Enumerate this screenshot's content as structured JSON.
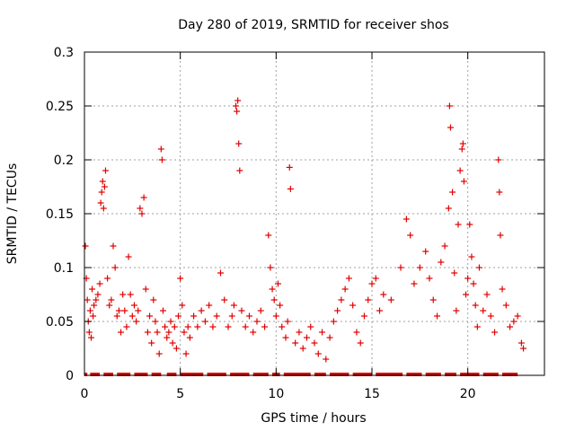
{
  "chart_data": {
    "type": "scatter",
    "title": "Day 280 of 2019, SRMTID for receiver shos",
    "xlabel": "GPS time / hours",
    "ylabel": "SRMTID / TECUs",
    "xlim": [
      0,
      24
    ],
    "ylim": [
      0,
      0.3
    ],
    "x_ticks": [
      0,
      5,
      10,
      15,
      20
    ],
    "x_tick_labels": [
      "0",
      "5",
      "10",
      "15",
      "20"
    ],
    "y_ticks": [
      0,
      0.05,
      0.1,
      0.15,
      0.2,
      0.25,
      0.3
    ],
    "y_tick_labels": [
      "0",
      "0.05",
      "0.1",
      "0.15",
      "0.2",
      "0.25",
      "0.3"
    ],
    "grid": true,
    "marker": "plus",
    "color": "#e00000",
    "series": [
      {
        "name": "SRMTID",
        "points": [
          [
            0.05,
            0.12
          ],
          [
            0.1,
            0.09
          ],
          [
            0.15,
            0.07
          ],
          [
            0.2,
            0.05
          ],
          [
            0.25,
            0.04
          ],
          [
            0.3,
            0.06
          ],
          [
            0.35,
            0.035
          ],
          [
            0.4,
            0.08
          ],
          [
            0.45,
            0.055
          ],
          [
            0.5,
            0.065
          ],
          [
            0.6,
            0.07
          ],
          [
            0.7,
            0.075
          ],
          [
            0.8,
            0.085
          ],
          [
            0.85,
            0.16
          ],
          [
            0.9,
            0.17
          ],
          [
            0.95,
            0.18
          ],
          [
            1.0,
            0.155
          ],
          [
            1.05,
            0.175
          ],
          [
            1.1,
            0.19
          ],
          [
            1.2,
            0.09
          ],
          [
            1.3,
            0.065
          ],
          [
            1.4,
            0.07
          ],
          [
            1.5,
            0.12
          ],
          [
            1.6,
            0.1
          ],
          [
            1.7,
            0.055
          ],
          [
            1.8,
            0.06
          ],
          [
            1.9,
            0.04
          ],
          [
            2.0,
            0.075
          ],
          [
            2.1,
            0.06
          ],
          [
            2.2,
            0.045
          ],
          [
            2.3,
            0.11
          ],
          [
            2.4,
            0.075
          ],
          [
            2.5,
            0.055
          ],
          [
            2.6,
            0.065
          ],
          [
            2.7,
            0.05
          ],
          [
            2.8,
            0.06
          ],
          [
            2.9,
            0.155
          ],
          [
            3.0,
            0.15
          ],
          [
            3.1,
            0.165
          ],
          [
            3.2,
            0.08
          ],
          [
            3.3,
            0.04
          ],
          [
            3.4,
            0.055
          ],
          [
            3.5,
            0.03
          ],
          [
            3.6,
            0.07
          ],
          [
            3.7,
            0.05
          ],
          [
            3.8,
            0.04
          ],
          [
            3.9,
            0.02
          ],
          [
            4.0,
            0.21
          ],
          [
            4.05,
            0.2
          ],
          [
            4.1,
            0.06
          ],
          [
            4.2,
            0.045
          ],
          [
            4.3,
            0.035
          ],
          [
            4.4,
            0.04
          ],
          [
            4.5,
            0.05
          ],
          [
            4.6,
            0.03
          ],
          [
            4.7,
            0.045
          ],
          [
            4.8,
            0.025
          ],
          [
            4.9,
            0.055
          ],
          [
            5.0,
            0.09
          ],
          [
            5.1,
            0.065
          ],
          [
            5.2,
            0.04
          ],
          [
            5.3,
            0.02
          ],
          [
            5.4,
            0.045
          ],
          [
            5.5,
            0.035
          ],
          [
            5.7,
            0.055
          ],
          [
            5.9,
            0.045
          ],
          [
            6.1,
            0.06
          ],
          [
            6.3,
            0.05
          ],
          [
            6.5,
            0.065
          ],
          [
            6.7,
            0.045
          ],
          [
            6.9,
            0.055
          ],
          [
            7.1,
            0.095
          ],
          [
            7.3,
            0.07
          ],
          [
            7.5,
            0.045
          ],
          [
            7.7,
            0.055
          ],
          [
            7.8,
            0.065
          ],
          [
            7.9,
            0.25
          ],
          [
            7.95,
            0.245
          ],
          [
            8.0,
            0.255
          ],
          [
            8.05,
            0.215
          ],
          [
            8.1,
            0.19
          ],
          [
            8.2,
            0.06
          ],
          [
            8.4,
            0.045
          ],
          [
            8.6,
            0.055
          ],
          [
            8.8,
            0.04
          ],
          [
            9.0,
            0.05
          ],
          [
            9.2,
            0.06
          ],
          [
            9.4,
            0.045
          ],
          [
            9.6,
            0.13
          ],
          [
            9.7,
            0.1
          ],
          [
            9.8,
            0.08
          ],
          [
            9.9,
            0.07
          ],
          [
            10.0,
            0.055
          ],
          [
            10.1,
            0.085
          ],
          [
            10.2,
            0.065
          ],
          [
            10.3,
            0.045
          ],
          [
            10.5,
            0.035
          ],
          [
            10.6,
            0.05
          ],
          [
            10.7,
            0.193
          ],
          [
            10.75,
            0.173
          ],
          [
            11.0,
            0.03
          ],
          [
            11.2,
            0.04
          ],
          [
            11.4,
            0.025
          ],
          [
            11.6,
            0.035
          ],
          [
            11.8,
            0.045
          ],
          [
            12.0,
            0.03
          ],
          [
            12.2,
            0.02
          ],
          [
            12.4,
            0.04
          ],
          [
            12.6,
            0.015
          ],
          [
            12.8,
            0.035
          ],
          [
            13.0,
            0.05
          ],
          [
            13.2,
            0.06
          ],
          [
            13.4,
            0.07
          ],
          [
            13.6,
            0.08
          ],
          [
            13.8,
            0.09
          ],
          [
            14.0,
            0.065
          ],
          [
            14.2,
            0.04
          ],
          [
            14.4,
            0.03
          ],
          [
            14.6,
            0.055
          ],
          [
            14.8,
            0.07
          ],
          [
            15.0,
            0.085
          ],
          [
            15.2,
            0.09
          ],
          [
            15.4,
            0.06
          ],
          [
            15.6,
            0.075
          ],
          [
            16.0,
            0.07
          ],
          [
            16.5,
            0.1
          ],
          [
            16.8,
            0.145
          ],
          [
            17.0,
            0.13
          ],
          [
            17.2,
            0.085
          ],
          [
            17.5,
            0.1
          ],
          [
            17.8,
            0.115
          ],
          [
            18.0,
            0.09
          ],
          [
            18.2,
            0.07
          ],
          [
            18.4,
            0.055
          ],
          [
            18.6,
            0.105
          ],
          [
            18.8,
            0.12
          ],
          [
            19.0,
            0.155
          ],
          [
            19.05,
            0.25
          ],
          [
            19.1,
            0.23
          ],
          [
            19.2,
            0.17
          ],
          [
            19.3,
            0.095
          ],
          [
            19.4,
            0.06
          ],
          [
            19.5,
            0.14
          ],
          [
            19.6,
            0.19
          ],
          [
            19.7,
            0.21
          ],
          [
            19.75,
            0.215
          ],
          [
            19.8,
            0.18
          ],
          [
            19.9,
            0.075
          ],
          [
            20.0,
            0.09
          ],
          [
            20.1,
            0.14
          ],
          [
            20.2,
            0.11
          ],
          [
            20.3,
            0.085
          ],
          [
            20.4,
            0.065
          ],
          [
            20.5,
            0.045
          ],
          [
            20.6,
            0.1
          ],
          [
            20.8,
            0.06
          ],
          [
            21.0,
            0.075
          ],
          [
            21.2,
            0.055
          ],
          [
            21.4,
            0.04
          ],
          [
            21.6,
            0.2
          ],
          [
            21.65,
            0.17
          ],
          [
            21.7,
            0.13
          ],
          [
            21.8,
            0.08
          ],
          [
            22.0,
            0.065
          ],
          [
            22.2,
            0.045
          ],
          [
            22.4,
            0.05
          ],
          [
            22.6,
            0.055
          ],
          [
            22.8,
            0.03
          ],
          [
            22.9,
            0.025
          ]
        ],
        "zero_segments": [
          [
            0.0,
            0.15
          ],
          [
            0.3,
            0.8
          ],
          [
            1.0,
            1.5
          ],
          [
            1.7,
            2.4
          ],
          [
            2.6,
            3.3
          ],
          [
            3.5,
            4.0
          ],
          [
            4.3,
            4.8
          ],
          [
            5.0,
            6.2
          ],
          [
            6.4,
            7.4
          ],
          [
            7.6,
            8.6
          ],
          [
            8.8,
            9.6
          ],
          [
            9.8,
            10.2
          ],
          [
            10.4,
            11.8
          ],
          [
            12.0,
            12.6
          ],
          [
            12.8,
            13.8
          ],
          [
            14.0,
            15.0
          ],
          [
            15.2,
            16.6
          ],
          [
            16.8,
            17.6
          ],
          [
            17.8,
            18.6
          ],
          [
            18.8,
            19.4
          ],
          [
            19.6,
            20.6
          ],
          [
            20.8,
            21.6
          ],
          [
            21.8,
            22.6
          ]
        ]
      }
    ]
  }
}
